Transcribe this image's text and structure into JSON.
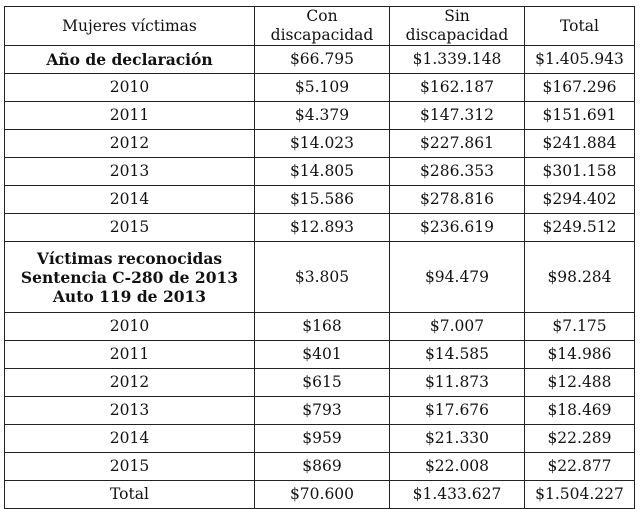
{
  "table": {
    "headers": [
      "Mujeres víctimas",
      "Con discapacidad",
      "Sin discapacidad",
      "Total"
    ],
    "groups": [
      {
        "label_lines": [
          "Año de declaración"
        ],
        "values": [
          "$66.795",
          "$1.339.148",
          "$1.405.943"
        ],
        "rows": [
          {
            "year": "2010",
            "con": "$5.109",
            "sin": "$162.187",
            "total": "$167.296"
          },
          {
            "year": "2011",
            "con": "$4.379",
            "sin": "$147.312",
            "total": "$151.691"
          },
          {
            "year": "2012",
            "con": "$14.023",
            "sin": "$227.861",
            "total": "$241.884"
          },
          {
            "year": "2013",
            "con": "$14.805",
            "sin": "$286.353",
            "total": "$301.158"
          },
          {
            "year": "2014",
            "con": "$15.586",
            "sin": "$278.816",
            "total": "$294.402"
          },
          {
            "year": "2015",
            "con": "$12.893",
            "sin": "$236.619",
            "total": "$249.512"
          }
        ]
      },
      {
        "label_lines": [
          "Víctimas reconocidas",
          "Sentencia C-280 de 2013",
          "Auto 119 de 2013"
        ],
        "values": [
          "$3.805",
          "$94.479",
          "$98.284"
        ],
        "rows": [
          {
            "year": "2010",
            "con": "$168",
            "sin": "$7.007",
            "total": "$7.175"
          },
          {
            "year": "2011",
            "con": "$401",
            "sin": "$14.585",
            "total": "$14.986"
          },
          {
            "year": "2012",
            "con": "$615",
            "sin": "$11.873",
            "total": "$12.488"
          },
          {
            "year": "2013",
            "con": "$793",
            "sin": "$17.676",
            "total": "$18.469"
          },
          {
            "year": "2014",
            "con": "$959",
            "sin": "$21.330",
            "total": "$22.289"
          },
          {
            "year": "2015",
            "con": "$869",
            "sin": "$22.008",
            "total": "$22.877"
          }
        ]
      }
    ],
    "total_row": {
      "label": "Total",
      "con": "$70.600",
      "sin": "$1.433.627",
      "total": "$1.504.227"
    }
  }
}
